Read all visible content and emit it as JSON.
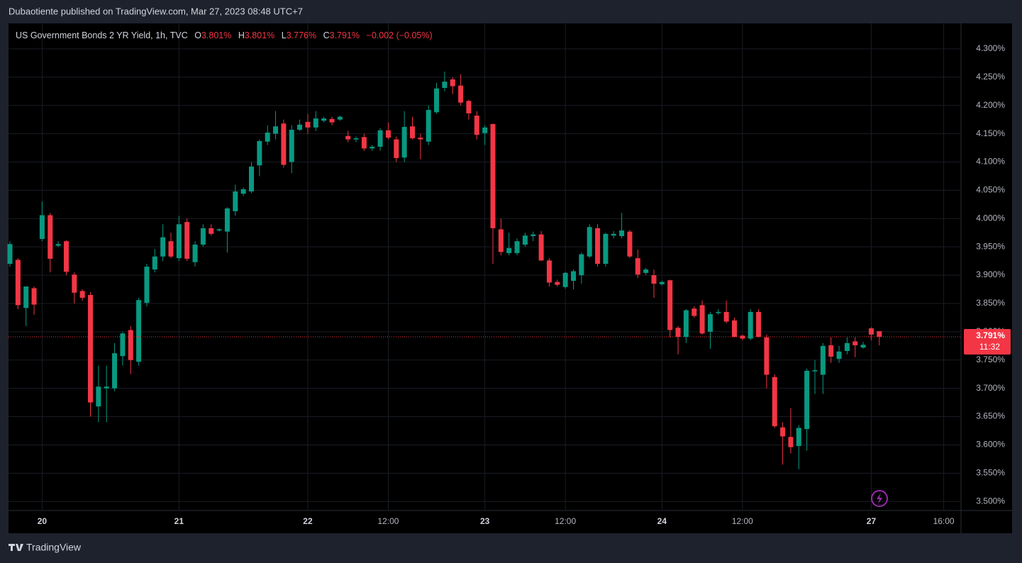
{
  "header": "Dubaotiente published on TradingView.com, Mar 27, 2023 08:48 UTC+7",
  "footer": "TradingView",
  "chart_data": {
    "type": "candlestick",
    "title": "US Government Bonds 2 YR Yield, 1h, TVC",
    "legend": [
      {
        "key": "O",
        "value": "3.801%"
      },
      {
        "key": "H",
        "value": "3.801%"
      },
      {
        "key": "L",
        "value": "3.776%"
      },
      {
        "key": "C",
        "value": "3.791%"
      }
    ],
    "change": "−0.002 (−0.05%)",
    "up_color": "#089981",
    "down_color": "#f23645",
    "grid": true,
    "ylim": [
      3.484,
      4.345
    ],
    "yticks": [
      {
        "value": 3.5,
        "label": "3.500%"
      },
      {
        "value": 3.55,
        "label": "3.550%"
      },
      {
        "value": 3.6,
        "label": "3.600%"
      },
      {
        "value": 3.65,
        "label": "3.650%"
      },
      {
        "value": 3.7,
        "label": "3.700%"
      },
      {
        "value": 3.75,
        "label": "3.750%"
      },
      {
        "value": 3.8,
        "label": "3.800%"
      },
      {
        "value": 3.85,
        "label": "3.850%"
      },
      {
        "value": 3.9,
        "label": "3.900%"
      },
      {
        "value": 3.95,
        "label": "3.950%"
      },
      {
        "value": 4.0,
        "label": "4.000%"
      },
      {
        "value": 4.05,
        "label": "4.050%"
      },
      {
        "value": 4.1,
        "label": "4.100%"
      },
      {
        "value": 4.15,
        "label": "4.150%"
      },
      {
        "value": 4.2,
        "label": "4.200%"
      },
      {
        "value": 4.25,
        "label": "4.250%"
      },
      {
        "value": 4.3,
        "label": "4.300%"
      }
    ],
    "last_price": {
      "value": 3.791,
      "label": "3.791%"
    },
    "countdown": "11:32",
    "categories": [
      null,
      null,
      null,
      null,
      "20",
      null,
      null,
      null,
      null,
      null,
      null,
      null,
      null,
      null,
      null,
      null,
      null,
      null,
      null,
      null,
      null,
      "21",
      null,
      null,
      null,
      null,
      null,
      null,
      null,
      null,
      null,
      null,
      null,
      null,
      null,
      null,
      null,
      "22",
      null,
      null,
      null,
      null,
      null,
      null,
      null,
      null,
      null,
      "12:00",
      null,
      null,
      null,
      null,
      null,
      null,
      null,
      null,
      null,
      null,
      null,
      "23",
      null,
      null,
      null,
      null,
      null,
      null,
      null,
      null,
      null,
      "12:00",
      null,
      null,
      null,
      null,
      null,
      null,
      null,
      null,
      null,
      null,
      null,
      "24",
      null,
      null,
      null,
      null,
      null,
      null,
      null,
      null,
      null,
      "12:00",
      null,
      null,
      null,
      null,
      null,
      null,
      null,
      null,
      null,
      null,
      null,
      null,
      null,
      null,
      null,
      "27",
      null,
      null,
      null,
      null,
      null,
      null,
      null,
      null,
      "16:00",
      null,
      null
    ],
    "open": [
      3.92,
      3.927,
      3.842,
      3.877,
      3.964,
      4.006,
      3.952,
      3.96,
      3.901,
      3.872,
      3.865,
      3.668,
      3.7,
      3.7,
      3.757,
      3.803,
      3.747,
      3.851,
      3.91,
      3.933,
      3.96,
      3.93,
      3.994,
      3.923,
      3.954,
      3.983,
      3.979,
      3.977,
      4.013,
      4.044,
      4.048,
      4.094,
      4.136,
      4.15,
      4.168,
      4.1,
      4.157,
      4.171,
      4.161,
      4.173,
      4.176,
      4.175,
      4.146,
      4.14,
      4.144,
      4.124,
      4.127,
      4.156,
      4.14,
      4.108,
      4.163,
      4.143,
      4.136,
      4.188,
      4.231,
      4.246,
      4.235,
      4.208,
      4.182,
      4.151,
      4.167,
      3.981,
      3.939,
      3.939,
      3.954,
      3.969,
      3.972,
      3.926,
      3.888,
      3.879,
      3.89,
      3.9,
      3.933,
      3.983,
      3.92,
      3.97,
      3.969,
      3.977,
      3.93,
      3.904,
      3.9,
      3.884,
      3.891,
      3.807,
      3.791,
      3.841,
      3.847,
      3.8,
      3.833,
      3.835,
      3.82,
      3.793,
      3.788,
      3.835,
      3.79,
      3.72,
      3.631,
      3.614,
      3.598,
      3.628,
      3.73,
      3.724,
      3.776,
      3.752,
      3.766,
      3.783,
      3.772,
      3.806,
      3.801,
      null,
      null,
      null,
      null,
      null,
      null,
      null,
      null,
      null,
      null
    ],
    "high": [
      3.96,
      3.93,
      3.88,
      3.88,
      4.03,
      4.01,
      3.96,
      3.962,
      3.905,
      3.875,
      3.87,
      3.74,
      3.74,
      3.78,
      3.8,
      3.81,
      3.86,
      3.92,
      3.946,
      3.99,
      3.975,
      4.005,
      4.0,
      3.96,
      3.99,
      3.99,
      3.983,
      4.02,
      4.06,
      4.055,
      4.1,
      4.14,
      4.165,
      4.19,
      4.175,
      4.165,
      4.175,
      4.185,
      4.19,
      4.18,
      4.18,
      4.182,
      4.155,
      4.145,
      4.15,
      4.13,
      4.16,
      4.17,
      4.145,
      4.19,
      4.18,
      4.15,
      4.2,
      4.24,
      4.26,
      4.25,
      4.255,
      4.21,
      4.19,
      4.165,
      4.168,
      4.0,
      3.975,
      3.965,
      3.975,
      3.977,
      3.978,
      3.93,
      3.892,
      3.906,
      3.91,
      3.94,
      3.99,
      3.99,
      3.975,
      3.978,
      4.01,
      3.98,
      3.945,
      3.913,
      3.91,
      3.89,
      3.892,
      3.81,
      3.84,
      3.845,
      3.855,
      3.835,
      3.84,
      3.855,
      3.825,
      3.795,
      3.84,
      3.84,
      3.795,
      3.725,
      3.64,
      3.665,
      3.635,
      3.735,
      3.75,
      3.78,
      3.79,
      3.775,
      3.79,
      3.79,
      3.782,
      3.808,
      3.801,
      null,
      null,
      null,
      null,
      null,
      null,
      null,
      null,
      null,
      null
    ],
    "low": [
      3.915,
      3.84,
      3.81,
      3.83,
      3.96,
      3.905,
      3.95,
      3.9,
      3.85,
      3.855,
      3.65,
      3.64,
      3.64,
      3.695,
      3.74,
      3.725,
      3.74,
      3.845,
      3.905,
      3.925,
      3.93,
      3.925,
      3.925,
      3.915,
      3.95,
      3.97,
      3.977,
      3.94,
      4.005,
      4.04,
      4.045,
      4.075,
      4.13,
      4.14,
      4.09,
      4.08,
      4.155,
      4.15,
      4.155,
      4.17,
      4.165,
      4.173,
      4.135,
      4.135,
      4.12,
      4.12,
      4.12,
      4.14,
      4.1,
      4.1,
      4.14,
      4.105,
      4.13,
      4.185,
      4.225,
      4.22,
      4.2,
      4.175,
      4.14,
      4.13,
      3.92,
      3.935,
      3.935,
      3.935,
      3.95,
      3.96,
      3.925,
      3.88,
      3.88,
      3.876,
      3.875,
      3.885,
      3.93,
      3.915,
      3.915,
      3.965,
      3.965,
      3.93,
      3.895,
      3.9,
      3.86,
      3.882,
      3.79,
      3.76,
      3.78,
      3.825,
      3.795,
      3.77,
      3.83,
      3.815,
      3.79,
      3.785,
      3.785,
      3.79,
      3.7,
      3.63,
      3.565,
      3.585,
      3.557,
      3.59,
      3.69,
      3.69,
      3.745,
      3.745,
      3.76,
      3.755,
      3.77,
      3.785,
      3.776,
      null,
      null,
      null,
      null,
      null,
      null,
      null,
      null,
      null,
      null
    ],
    "close": [
      3.955,
      3.847,
      3.88,
      3.848,
      4.006,
      3.929,
      3.955,
      3.906,
      3.869,
      3.86,
      3.675,
      3.703,
      3.703,
      3.762,
      3.797,
      3.75,
      3.856,
      3.915,
      3.933,
      3.967,
      3.933,
      3.99,
      3.929,
      3.954,
      3.983,
      3.973,
      3.981,
      4.018,
      4.048,
      4.052,
      4.092,
      4.137,
      4.152,
      4.163,
      4.095,
      4.157,
      4.166,
      4.161,
      4.177,
      4.177,
      4.17,
      4.18,
      4.14,
      4.142,
      4.124,
      4.127,
      4.156,
      4.143,
      4.107,
      4.162,
      4.142,
      4.14,
      4.192,
      4.23,
      4.242,
      4.234,
      4.205,
      4.186,
      4.148,
      4.161,
      3.983,
      3.941,
      3.948,
      3.96,
      3.97,
      3.972,
      3.926,
      3.887,
      3.883,
      3.904,
      3.907,
      3.937,
      3.985,
      3.92,
      3.973,
      3.973,
      3.979,
      3.933,
      3.901,
      3.91,
      3.885,
      3.888,
      3.803,
      3.791,
      3.838,
      3.828,
      3.797,
      3.831,
      3.835,
      3.818,
      3.791,
      3.788,
      3.835,
      3.791,
      3.724,
      3.633,
      3.615,
      3.596,
      3.63,
      3.731,
      3.732,
      3.775,
      3.756,
      3.765,
      3.78,
      3.776,
      3.777,
      3.795,
      3.791,
      null,
      null,
      null,
      null,
      null,
      null,
      null,
      null,
      null,
      null
    ]
  }
}
